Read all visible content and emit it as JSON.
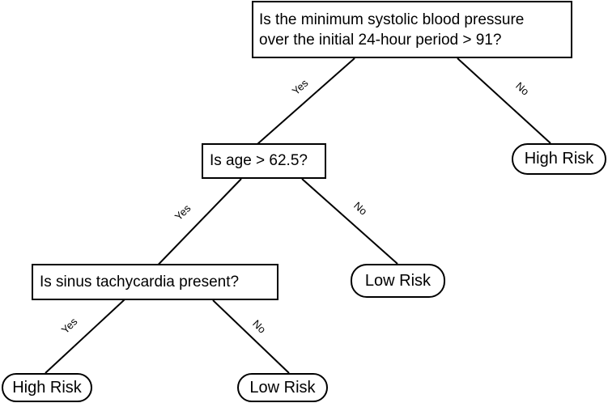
{
  "diagram": {
    "root_question": {
      "line1": "Is the minimum systolic blood pressure",
      "line2": "over the initial 24-hour period > 91?"
    },
    "age_question": "Is age > 62.5?",
    "sinus_question": "Is sinus tachycardia present?",
    "leaves": {
      "root_no": "High Risk",
      "age_no": "Low Risk",
      "sinus_yes": "High Risk",
      "sinus_no": "Low Risk"
    },
    "edge_labels": {
      "root_yes": "Yes",
      "root_no": "No",
      "age_yes": "Yes",
      "age_no": "No",
      "sinus_yes": "Yes",
      "sinus_no": "No"
    }
  }
}
